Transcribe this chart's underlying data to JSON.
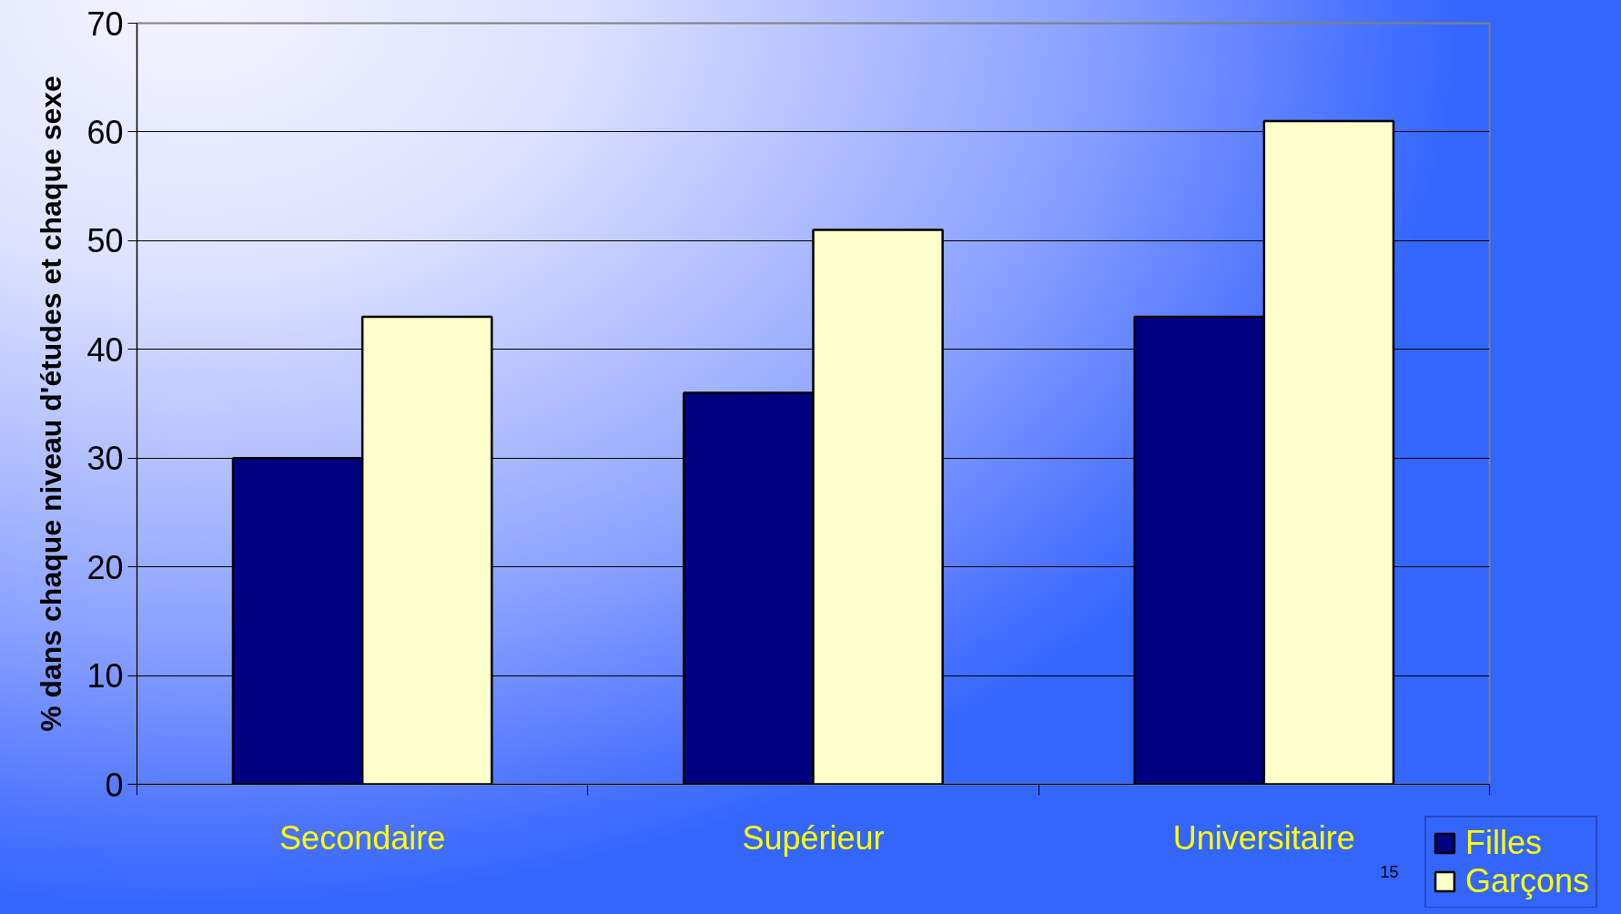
{
  "chart_data": {
    "type": "bar",
    "ylabel": "% dans chaque niveau d'études et chaque sexe",
    "categories": [
      "Secondaire",
      "Supérieur",
      "Universitaire"
    ],
    "series": [
      {
        "name": "Filles",
        "color": "#000080",
        "values": [
          30,
          36,
          43
        ]
      },
      {
        "name": "Garçons",
        "color": "#ffffcc",
        "values": [
          43,
          51,
          61
        ]
      }
    ],
    "ylim": [
      0,
      70
    ],
    "yticks": [
      0,
      10,
      20,
      30,
      40,
      50,
      60,
      70
    ],
    "grid": "y",
    "legend": "bottom right",
    "annotations": [
      "15"
    ]
  }
}
